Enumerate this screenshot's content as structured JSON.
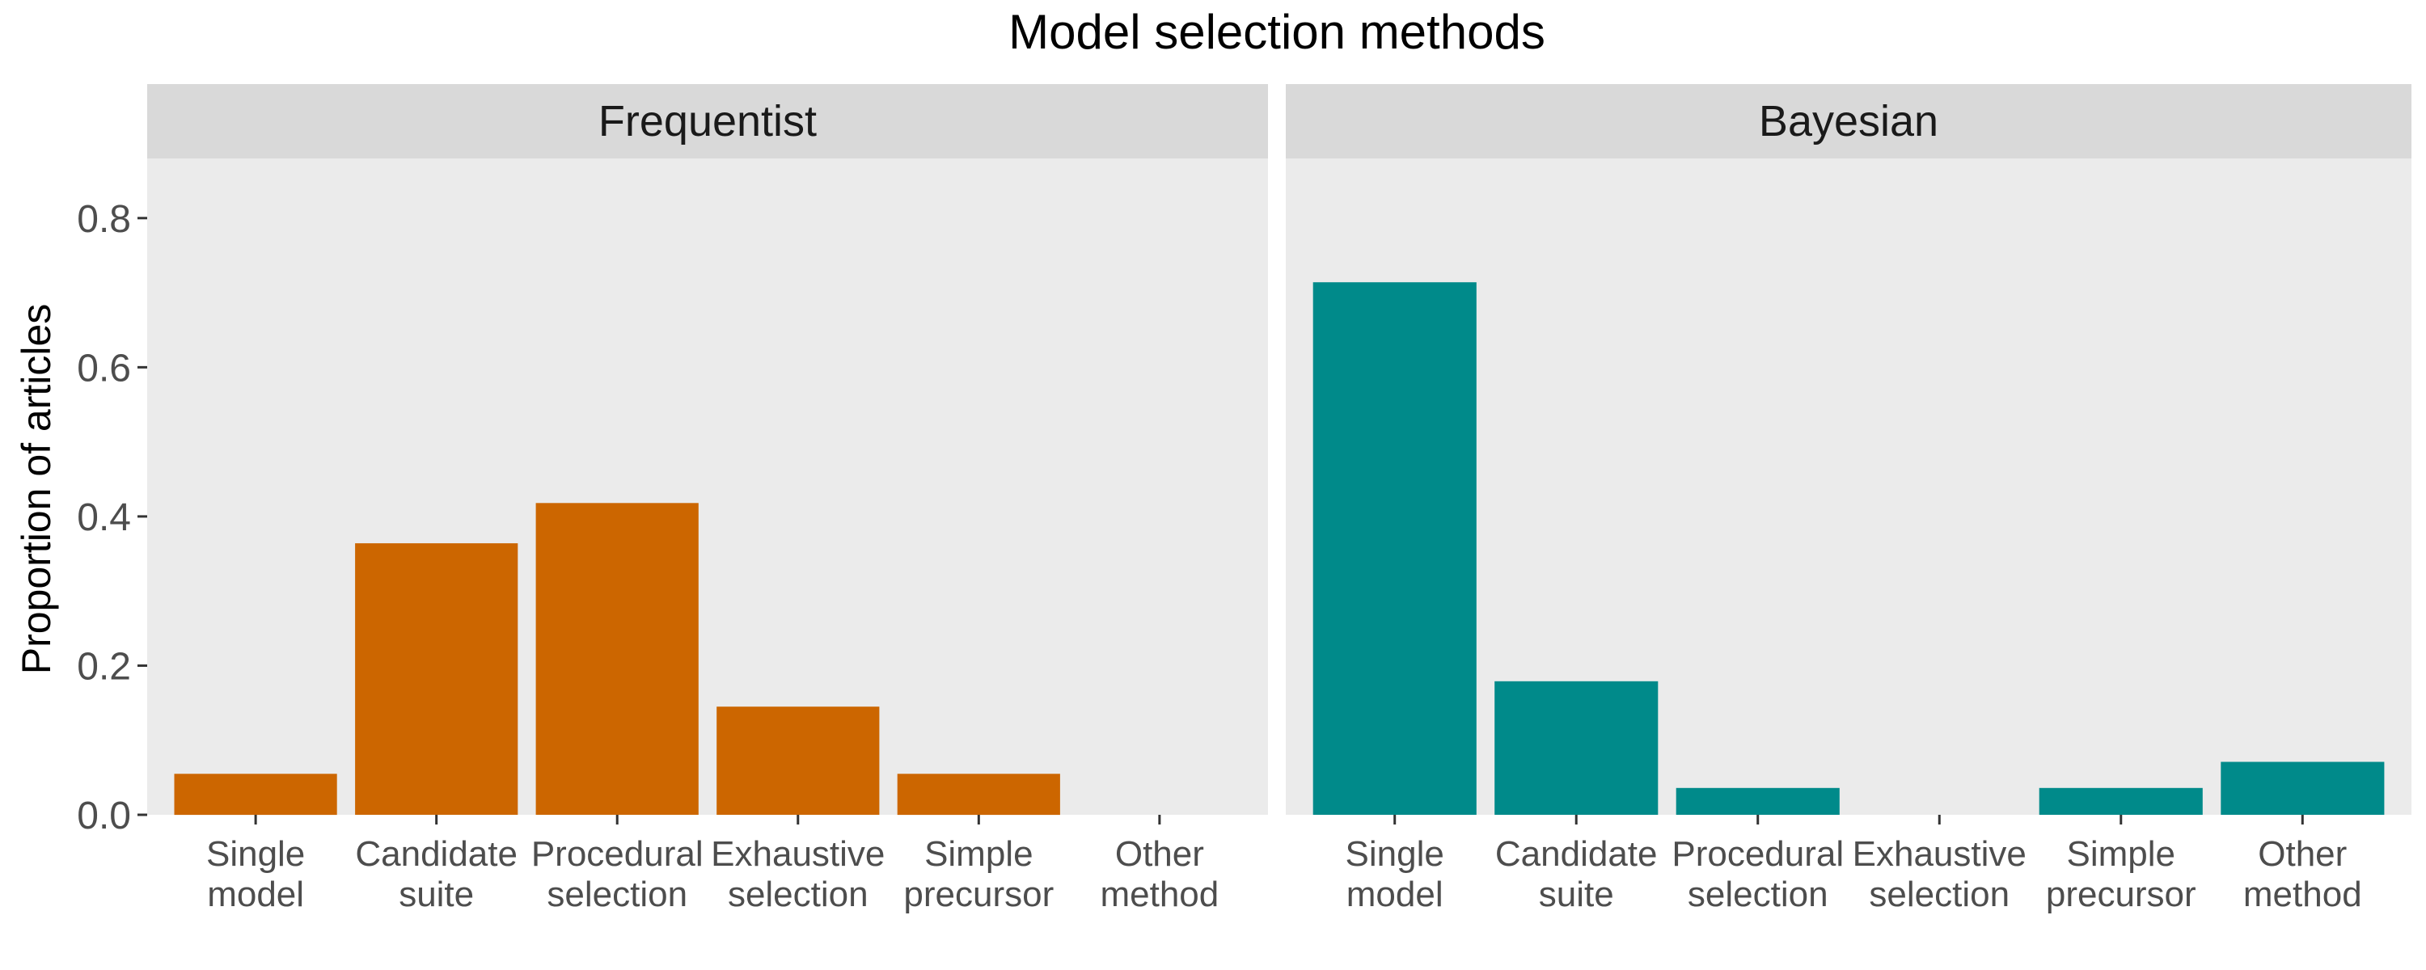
{
  "chart_data": {
    "type": "bar",
    "title": "Model selection methods",
    "xlabel": "",
    "ylabel": "Proportion of articles",
    "ylim": [
      0,
      0.88
    ],
    "yticks": [
      "0.0",
      "0.2",
      "0.4",
      "0.6",
      "0.8"
    ],
    "ytick_values": [
      0,
      0.2,
      0.4,
      0.6,
      0.8
    ],
    "grid": false,
    "legend": "none",
    "categories": [
      [
        "Single",
        "model"
      ],
      [
        "Candidate",
        "suite"
      ],
      [
        "Procedural",
        "selection"
      ],
      [
        "Exhaustive",
        "selection"
      ],
      [
        "Simple",
        "precursor"
      ],
      [
        "Other",
        "method"
      ]
    ],
    "panels": [
      {
        "name": "Frequentist",
        "color": "#CC6600",
        "values": [
          0.055,
          0.364,
          0.418,
          0.145,
          0.055,
          0.0
        ]
      },
      {
        "name": "Bayesian",
        "color": "#008A8A",
        "values": [
          0.714,
          0.179,
          0.036,
          0.0,
          0.036,
          0.071
        ]
      }
    ],
    "colors": {
      "panel_background": "#EBEBEB",
      "strip_background": "#D9D9D9",
      "axis_text": "#4D4D4D"
    }
  }
}
